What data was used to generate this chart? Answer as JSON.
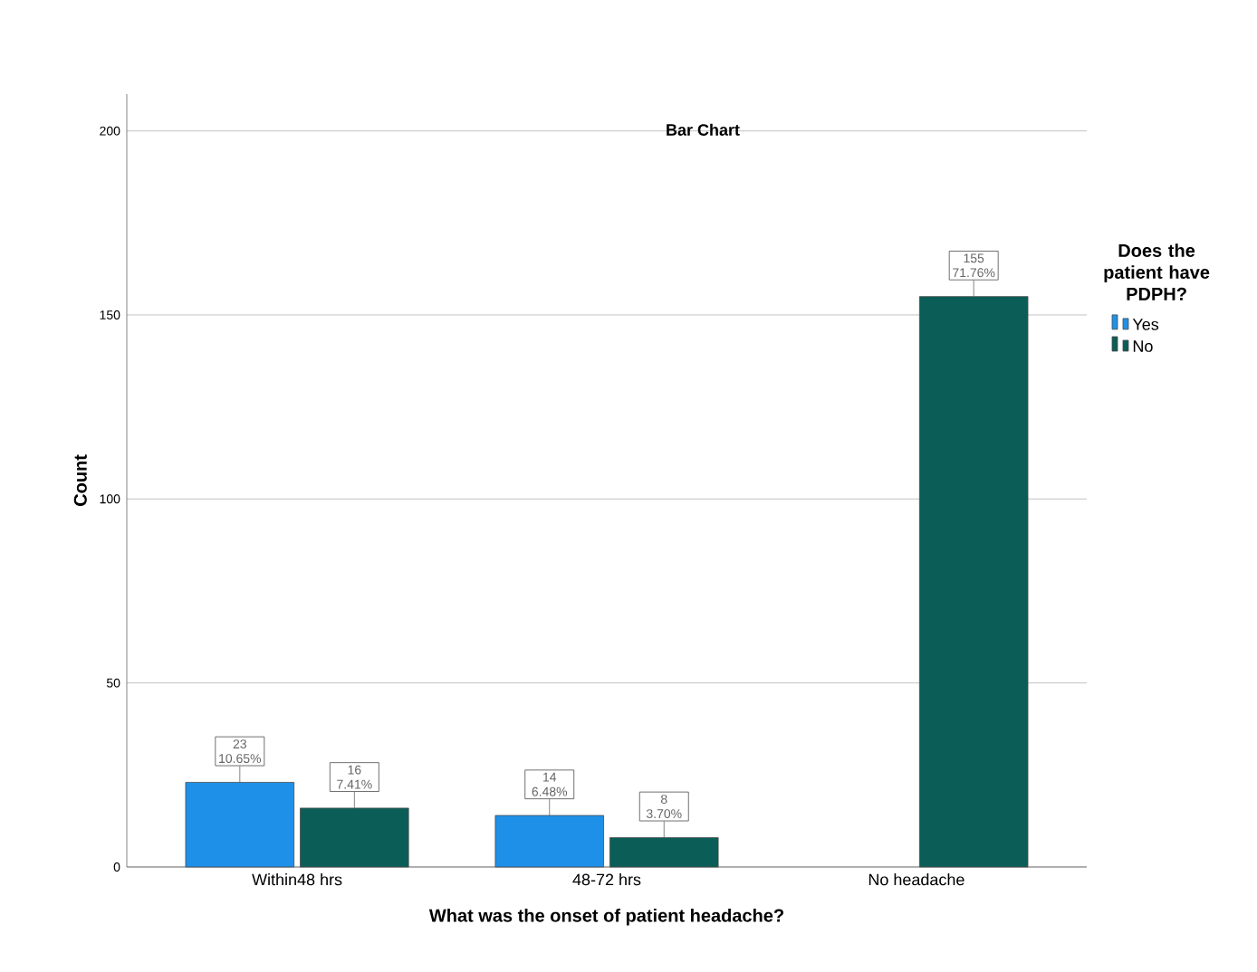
{
  "chart_data": {
    "type": "bar",
    "title": "Bar Chart",
    "xlabel": "What was the onset of patient headache?",
    "ylabel": "Count",
    "legend_title": "Does the patient have PDPH?",
    "categories": [
      "Within48 hrs",
      "48-72 hrs",
      "No headache"
    ],
    "series": [
      {
        "name": "Yes",
        "color": "#1e90e8",
        "values": [
          23,
          14,
          null
        ],
        "value_labels": [
          "23 10.65%",
          "14 6.48%",
          null
        ]
      },
      {
        "name": "No",
        "color": "#0b5e57",
        "values": [
          16,
          8,
          155
        ],
        "value_labels": [
          "16 7.41%",
          "8 3.70%",
          "155 71.76%"
        ]
      }
    ],
    "ylim": [
      0,
      210
    ],
    "yticks": [
      0,
      50,
      100,
      150,
      200
    ],
    "grid": "y",
    "legend": "right"
  }
}
